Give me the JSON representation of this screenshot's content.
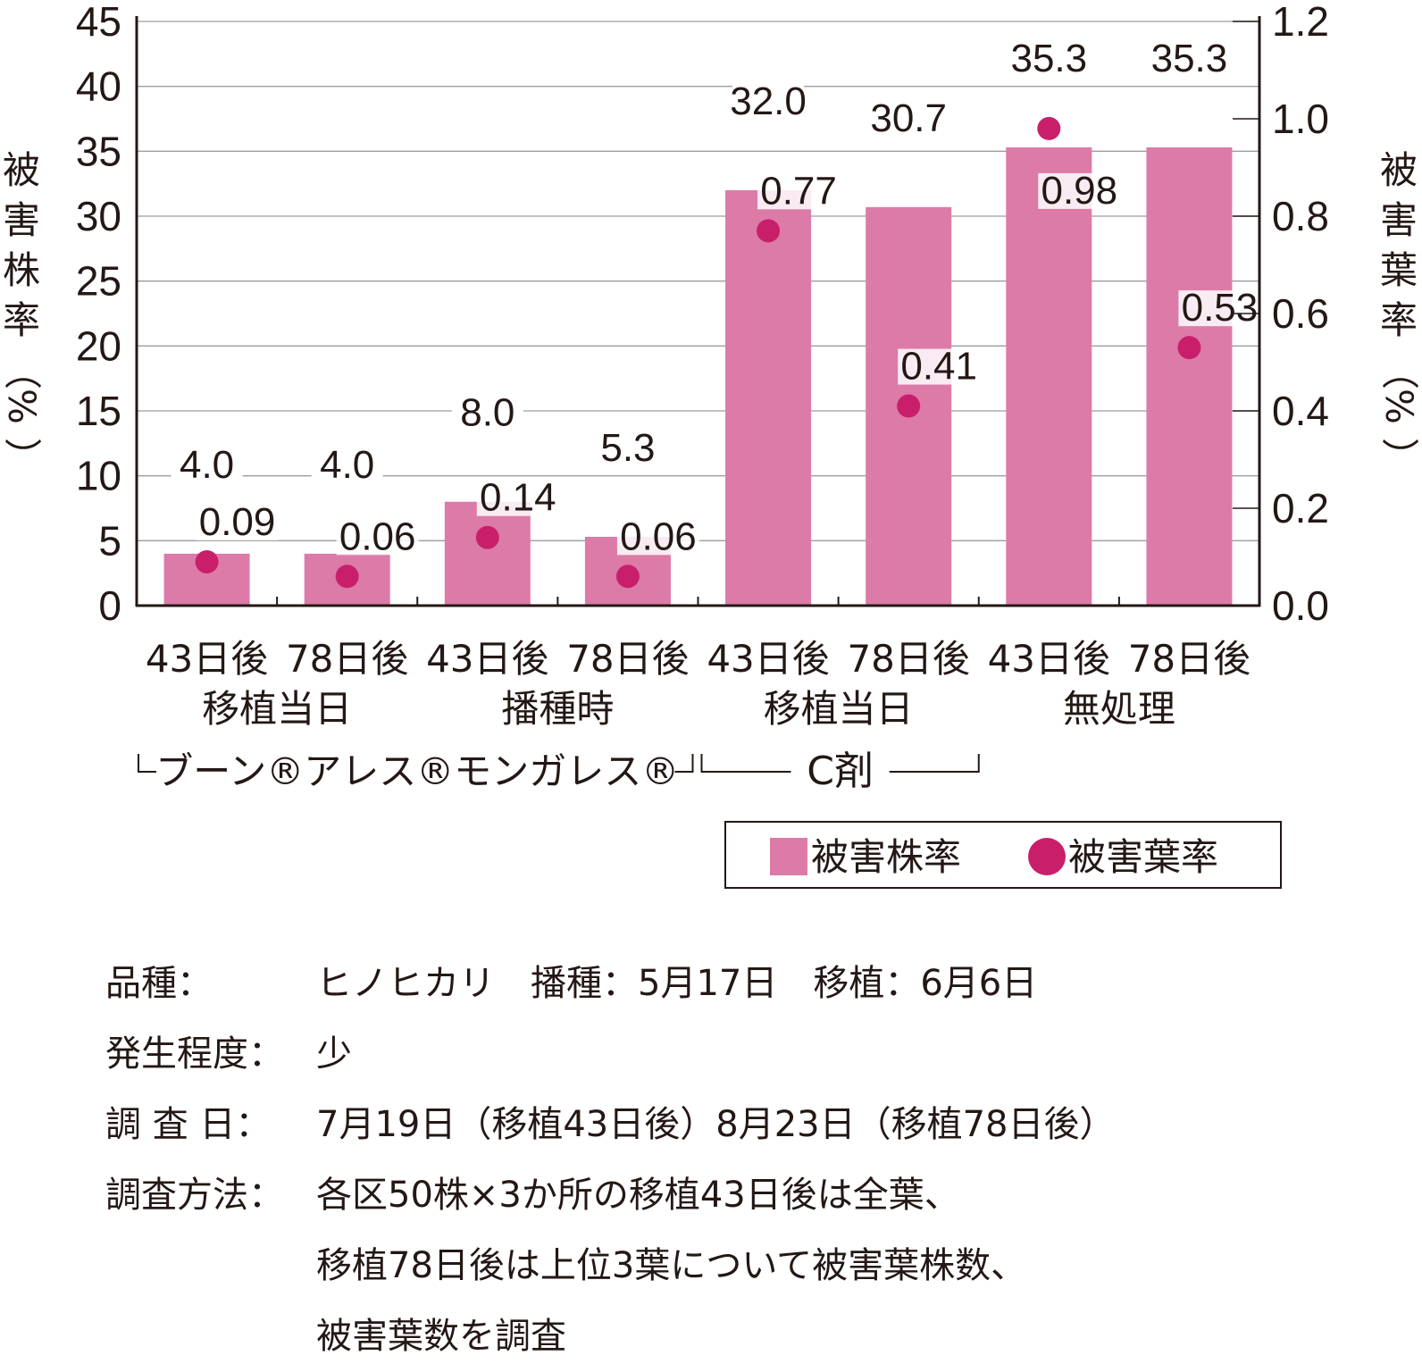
{
  "chart_data": {
    "type": "bar",
    "bar_color": "#dc7ba8",
    "dot_color": "#c91f6b",
    "grid": true,
    "y_left": {
      "label": "被害株率（%）",
      "ylim": [
        0,
        45
      ],
      "ticks": [
        0,
        5,
        10,
        15,
        20,
        25,
        30,
        35,
        40,
        45
      ]
    },
    "y_right": {
      "label": "被害葉率（%）",
      "ylim": [
        0,
        1.2
      ],
      "ticks": [
        "0.0",
        "0.2",
        "0.4",
        "0.6",
        "0.8",
        "1.0",
        "1.2"
      ]
    },
    "categories": [
      "43日後",
      "78日後",
      "43日後",
      "78日後",
      "43日後",
      "78日後",
      "43日後",
      "78日後"
    ],
    "timings": [
      "移植当日",
      "播種時",
      "移植当日",
      "無処理"
    ],
    "product_groups": [
      "ブーン®アレス®モンガレス®",
      "C剤"
    ],
    "series": [
      {
        "name": "被害株率",
        "axis": "left",
        "type": "bar",
        "values": [
          4.0,
          4.0,
          8.0,
          5.3,
          32.0,
          30.7,
          35.3,
          35.3
        ],
        "labels": [
          "4.0",
          "4.0",
          "8.0",
          "5.3",
          "32.0",
          "30.7",
          "35.3",
          "35.3"
        ]
      },
      {
        "name": "被害葉率",
        "axis": "right",
        "type": "scatter",
        "values": [
          0.09,
          0.06,
          0.14,
          0.06,
          0.77,
          0.41,
          0.98,
          0.53
        ],
        "labels": [
          "0.09",
          "0.06",
          "0.14",
          "0.06",
          "0.77",
          "0.41",
          "0.98",
          "0.53"
        ]
      }
    ],
    "legend": {
      "position": "bottom-right",
      "items": [
        "被害株率",
        "被害葉率"
      ]
    }
  },
  "notes": [
    {
      "label": "品種：",
      "value": "ヒノヒカリ　播種：5月17日　移植：6月6日"
    },
    {
      "label": "発生程度：",
      "value": "少"
    },
    {
      "label": "調 査 日：",
      "value": "7月19日（移植43日後）8月23日（移植78日後）"
    },
    {
      "label": "調査方法：",
      "value": "各区50株×3か所の移植43日後は全葉、",
      "continuation": [
        "移植78日後は上位3葉について被害葉株数、",
        "被害葉数を調査"
      ]
    }
  ]
}
